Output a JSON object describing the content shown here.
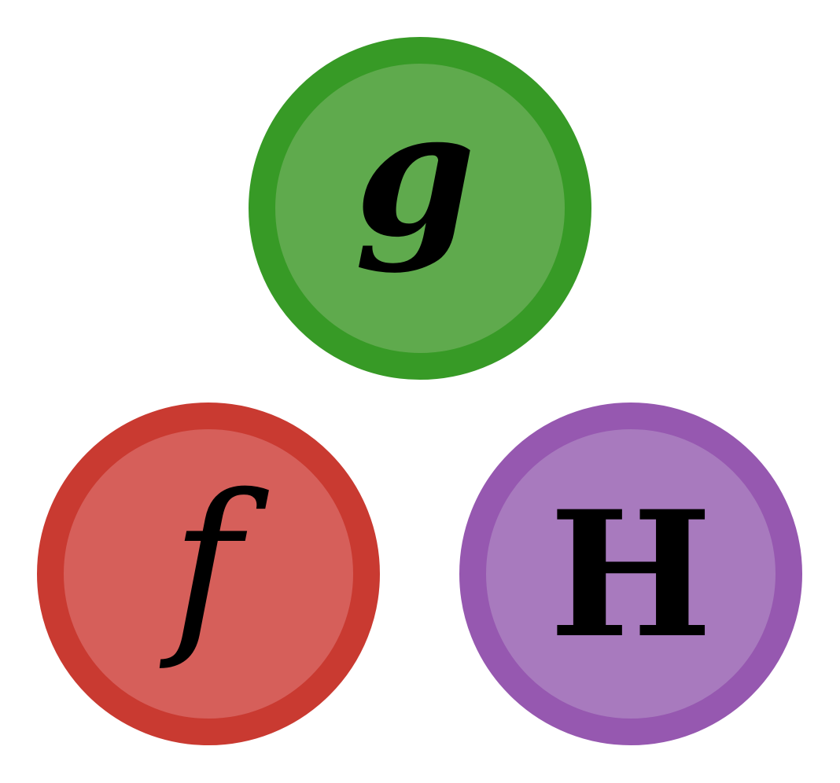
{
  "nodes": [
    {
      "id": "g",
      "label": "g",
      "fill_color": "#5faa4d",
      "stroke_color": "#379a26"
    },
    {
      "id": "f",
      "label": "f",
      "fill_color": "#d65f5a",
      "stroke_color": "#c93a31"
    },
    {
      "id": "H",
      "label": "H",
      "fill_color": "#a87abe",
      "stroke_color": "#9658b0"
    }
  ]
}
